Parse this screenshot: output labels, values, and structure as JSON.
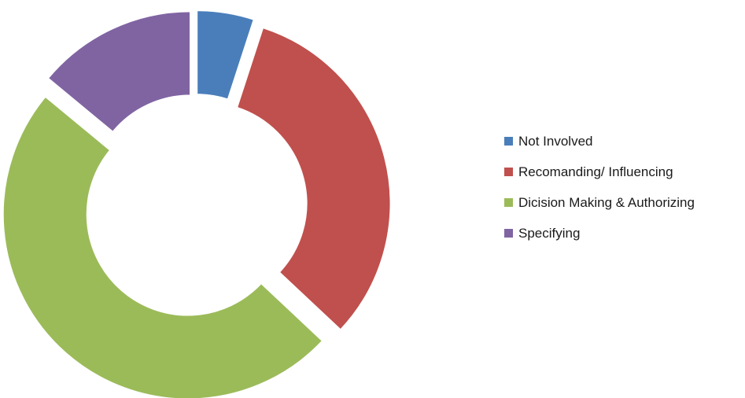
{
  "chart_data": {
    "type": "pie",
    "variant": "exploded-doughnut",
    "title": "",
    "legend_position": "right",
    "categories": [
      "Not Involved",
      "Recomanding/ Influencing",
      "Dicision Making & Authorizing",
      "Specifying"
    ],
    "values": [
      5,
      32,
      49,
      14
    ],
    "colors": [
      "#4a7ebb",
      "#c0504d",
      "#9bbb59",
      "#8064a2"
    ]
  },
  "legend": {
    "items": [
      {
        "label": "Not Involved",
        "color": "#4a7ebb"
      },
      {
        "label": "Recomanding/ Influencing",
        "color": "#c0504d"
      },
      {
        "label": "Dicision Making & Authorizing",
        "color": "#9bbb59"
      },
      {
        "label": "Specifying",
        "color": "#8064a2"
      }
    ]
  }
}
